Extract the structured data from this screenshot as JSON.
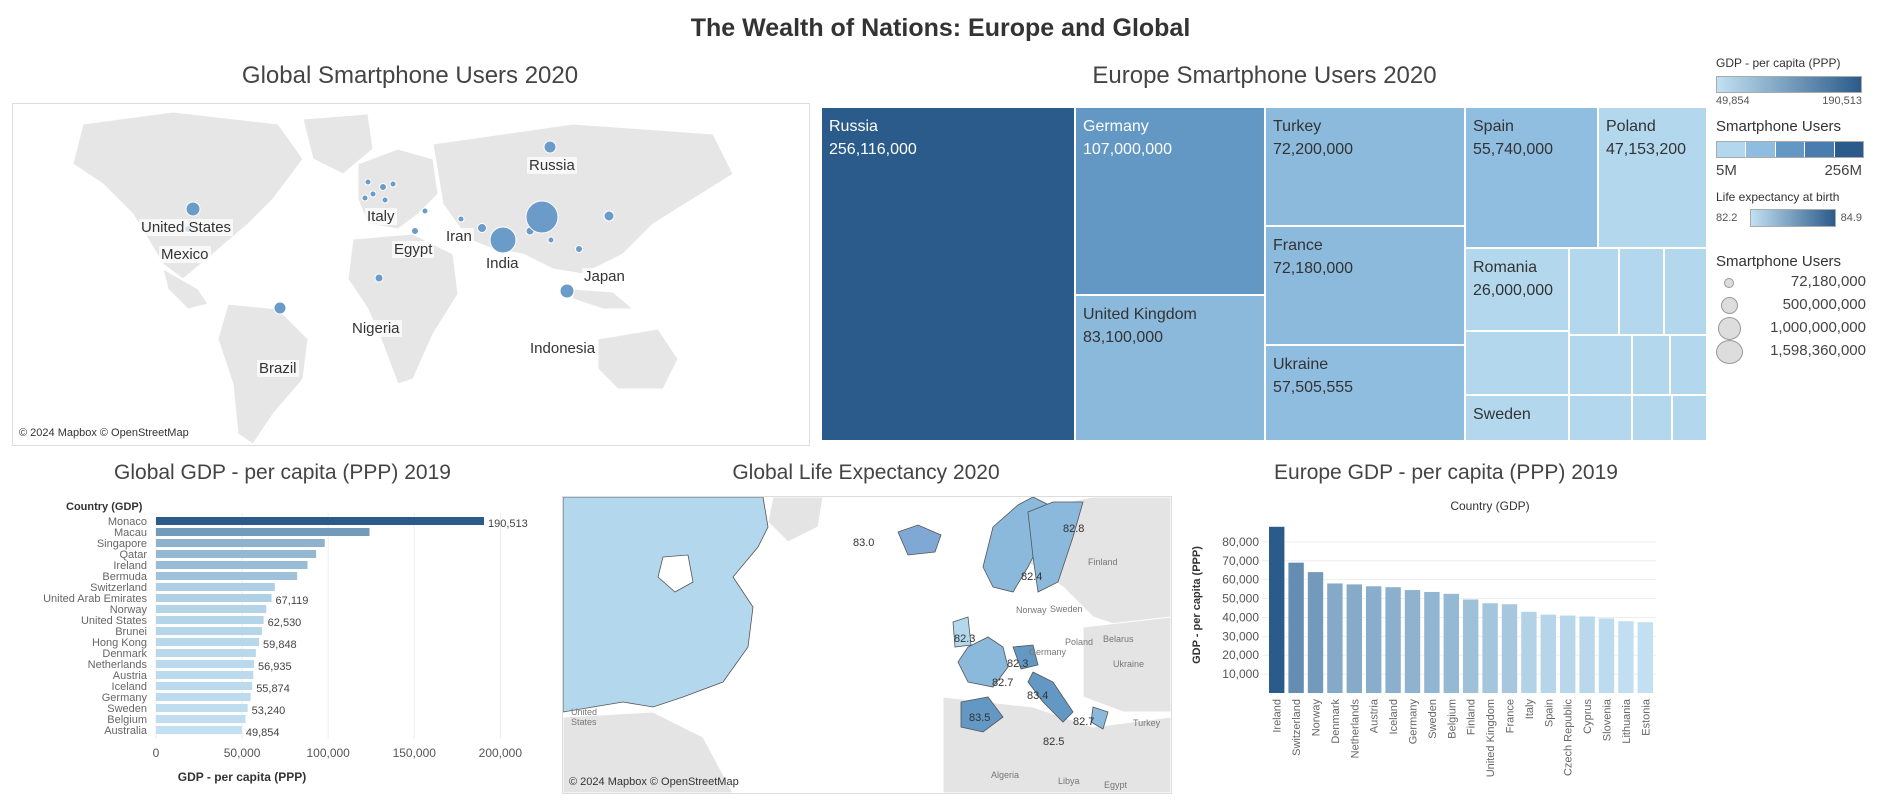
{
  "dashboard_title": "The Wealth of Nations: Europe and Global",
  "attribution": "© 2024 Mapbox © OpenStreetMap",
  "colors": {
    "dark": "#2b5b8a",
    "mid": "#5a8fc0",
    "light": "#b3d8ee",
    "land": "#e8e8e8"
  },
  "legends": {
    "gdp": {
      "title": "GDP - per capita (PPP)",
      "min": "49,854",
      "max": "190,513"
    },
    "smartphone_color": {
      "title": "Smartphone Users",
      "min": "5M",
      "max": "256M"
    },
    "life": {
      "title": "Life expectancy at birth",
      "min": "82.2",
      "max": "84.9"
    },
    "smartphone_size": {
      "title": "Smartphone Users",
      "items": [
        "72,180,000",
        "500,000,000",
        "1,000,000,000",
        "1,598,360,000"
      ]
    }
  },
  "chart_data": [
    {
      "type": "scatter",
      "title": "Global Smartphone Users 2020",
      "labels": [
        "Russia",
        "United States",
        "Mexico",
        "Italy",
        "Egypt",
        "Iran",
        "India",
        "Japan",
        "Nigeria",
        "Indonesia",
        "Brazil"
      ]
    },
    {
      "type": "treemap",
      "title": "Europe Smartphone Users 2020",
      "items": [
        {
          "name": "Russia",
          "value": "256,116,000",
          "shade": "#2b5b8a"
        },
        {
          "name": "Germany",
          "value": "107,000,000",
          "shade": "#6397c4"
        },
        {
          "name": "United Kingdom",
          "value": "83,100,000",
          "shade": "#8ab9dc"
        },
        {
          "name": "Turkey",
          "value": "72,200,000",
          "shade": "#8bbadd"
        },
        {
          "name": "France",
          "value": "72,180,000",
          "shade": "#8bbadd"
        },
        {
          "name": "Ukraine",
          "value": "57,505,555",
          "shade": "#8fbde0"
        },
        {
          "name": "Spain",
          "value": "55,740,000",
          "shade": "#90bee0"
        },
        {
          "name": "Poland",
          "value": "47,153,200",
          "shade": "#b3d8ee"
        },
        {
          "name": "Romania",
          "value": "26,000,000",
          "shade": "#b3d8ee"
        },
        {
          "name": "Sweden",
          "value": "",
          "shade": "#b3d8ee"
        }
      ]
    },
    {
      "type": "bar",
      "title": "Global GDP  - per capita (PPP) 2019",
      "header": "Country (GDP)",
      "xlabel": "GDP - per capita (PPP)",
      "xlim": [
        0,
        230000
      ],
      "xticks": [
        "0",
        "50,000",
        "100,000",
        "150,000",
        "200,000"
      ],
      "categories": [
        "Monaco",
        "Macau",
        "Singapore",
        "Qatar",
        "Ireland",
        "Bermuda",
        "Switzerland",
        "United Arab Emirates",
        "Norway",
        "United States",
        "Brunei",
        "Hong Kong",
        "Denmark",
        "Netherlands",
        "Austria",
        "Iceland",
        "Germany",
        "Sweden",
        "Belgium",
        "Australia"
      ],
      "values": [
        190513,
        124000,
        98000,
        93000,
        88000,
        82000,
        69000,
        67119,
        64000,
        62530,
        61500,
        59848,
        58000,
        56935,
        56500,
        55874,
        55000,
        53240,
        52000,
        49854
      ],
      "value_labels": [
        "190,513",
        "",
        "",
        "",
        "",
        "",
        "",
        "67,119",
        "",
        "62,530",
        "",
        "59,848",
        "",
        "56,935",
        "",
        "55,874",
        "",
        "53,240",
        "",
        "49,854"
      ]
    },
    {
      "type": "map",
      "title": "Global Life Expectancy 2020",
      "value_labels": [
        "83.0",
        "82.8",
        "82.4",
        "82.3",
        "82.3",
        "82.7",
        "83.4",
        "83.5",
        "82.5",
        "82.7"
      ],
      "place_labels": [
        "Finland",
        "Sweden",
        "Norway",
        "Poland",
        "Germany",
        "Belarus",
        "Ukraine",
        "Turkey",
        "Algeria",
        "Libya",
        "Egypt",
        "United States"
      ]
    },
    {
      "type": "bar",
      "title": "Europe GDP - per capita (PPP) 2019",
      "header": "Country (GDP)",
      "ylabel": "GDP - per capita (PPP)",
      "ylim": [
        0,
        90000
      ],
      "yticks": [
        "10,000",
        "20,000",
        "30,000",
        "40,000",
        "50,000",
        "60,000",
        "70,000",
        "80,000"
      ],
      "categories": [
        "Ireland",
        "Switzerland",
        "Norway",
        "Denmark",
        "Netherlands",
        "Austria",
        "Iceland",
        "Germany",
        "Sweden",
        "Belgium",
        "Finland",
        "United Kingdom",
        "France",
        "Italy",
        "Spain",
        "Czech Republic",
        "Cyprus",
        "Slovenia",
        "Lithuania",
        "Estonia"
      ],
      "values": [
        88000,
        69000,
        64000,
        58000,
        57500,
        56500,
        56000,
        54500,
        53500,
        52500,
        49500,
        47500,
        47000,
        43000,
        41500,
        41000,
        40500,
        39500,
        38000,
        37500
      ]
    }
  ]
}
